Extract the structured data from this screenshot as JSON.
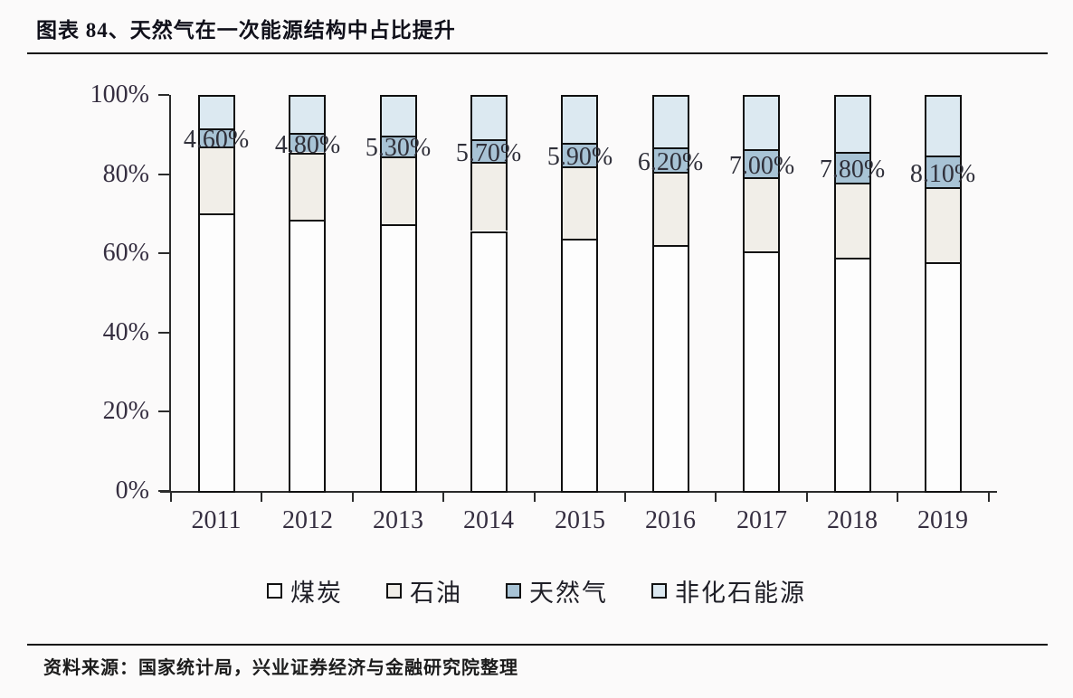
{
  "header": {
    "title": "图表 84、天然气在一次能源结构中占比提升"
  },
  "footer": {
    "source": "资料来源：国家统计局，兴业证券经济与金融研究院整理"
  },
  "style": {
    "background": "#fbfafa",
    "axis_color": "#2b2b2b",
    "bar_border_color": "#101010",
    "tick_label_color": "#352e40",
    "data_label_color": "#30303a",
    "rule_color": "#0d0d0d"
  },
  "chart_data": {
    "type": "bar",
    "stacked": true,
    "title": "图表 84、天然气在一次能源结构中占比提升",
    "categories": [
      "2011",
      "2012",
      "2013",
      "2014",
      "2015",
      "2016",
      "2017",
      "2018",
      "2019"
    ],
    "series": [
      {
        "name": "煤炭",
        "color": "#fdfdfd",
        "values": [
          70.2,
          68.5,
          67.4,
          65.6,
          63.7,
          62.0,
          60.4,
          59.0,
          57.7
        ]
      },
      {
        "name": "石油",
        "color": "#f1eee8",
        "values": [
          16.8,
          17.0,
          17.1,
          17.4,
          18.3,
          18.5,
          18.8,
          18.9,
          18.9
        ]
      },
      {
        "name": "天然气",
        "color": "#a8c3d5",
        "values": [
          4.6,
          4.8,
          5.3,
          5.7,
          5.9,
          6.2,
          7.0,
          7.8,
          8.1
        ],
        "labels": [
          "4.60%",
          "4.80%",
          "5.30%",
          "5.70%",
          "5.90%",
          "6.20%",
          "7.00%",
          "7.80%",
          "8.10%"
        ]
      },
      {
        "name": "非化石能源",
        "color": "#dce9f1",
        "values": [
          8.4,
          9.7,
          10.2,
          11.3,
          12.1,
          13.3,
          13.8,
          14.3,
          15.3
        ]
      }
    ],
    "xlabel": "",
    "ylabel": "",
    "ylim": [
      0,
      100
    ],
    "yticks": [
      "0%",
      "20%",
      "40%",
      "60%",
      "80%",
      "100%"
    ],
    "ytick_values": [
      0,
      20,
      40,
      60,
      80,
      100
    ],
    "grid": false,
    "legend_position": "bottom",
    "label_series": "天然气"
  }
}
